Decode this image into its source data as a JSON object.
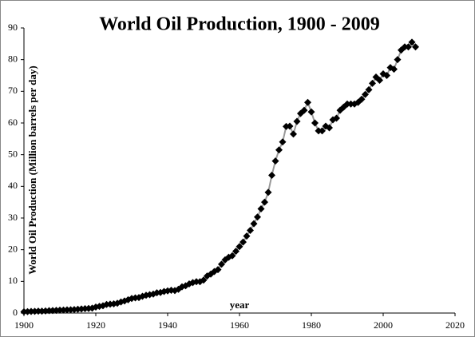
{
  "chart_data": {
    "type": "line",
    "title": "World Oil Production, 1900 - 2009",
    "x_label": "year",
    "y_label": "World Oil Production (Million barrels per day)",
    "x": [
      1900,
      1901,
      1902,
      1903,
      1904,
      1905,
      1906,
      1907,
      1908,
      1909,
      1910,
      1911,
      1912,
      1913,
      1914,
      1915,
      1916,
      1917,
      1918,
      1919,
      1920,
      1921,
      1922,
      1923,
      1924,
      1925,
      1926,
      1927,
      1928,
      1929,
      1930,
      1931,
      1932,
      1933,
      1934,
      1935,
      1936,
      1937,
      1938,
      1939,
      1940,
      1941,
      1942,
      1943,
      1944,
      1945,
      1946,
      1947,
      1948,
      1949,
      1950,
      1951,
      1952,
      1953,
      1954,
      1955,
      1956,
      1957,
      1958,
      1959,
      1960,
      1961,
      1962,
      1963,
      1964,
      1965,
      1966,
      1967,
      1968,
      1969,
      1970,
      1971,
      1972,
      1973,
      1974,
      1975,
      1976,
      1977,
      1978,
      1979,
      1980,
      1981,
      1982,
      1983,
      1984,
      1985,
      1986,
      1987,
      1988,
      1989,
      1990,
      1991,
      1992,
      1993,
      1994,
      1995,
      1996,
      1997,
      1998,
      1999,
      2000,
      2001,
      2002,
      2003,
      2004,
      2005,
      2006,
      2007,
      2008,
      2009
    ],
    "series": [
      {
        "name": "World Oil Production",
        "color": "#000000",
        "line_color": "#999999",
        "values": [
          0.4,
          0.45,
          0.5,
          0.55,
          0.6,
          0.6,
          0.65,
          0.75,
          0.8,
          0.85,
          0.9,
          0.95,
          1.0,
          1.05,
          1.1,
          1.2,
          1.3,
          1.4,
          1.45,
          1.55,
          1.9,
          2.1,
          2.3,
          2.7,
          2.8,
          2.9,
          3.1,
          3.5,
          3.8,
          4.2,
          4.6,
          4.8,
          4.9,
          5.3,
          5.6,
          5.8,
          6.0,
          6.4,
          6.5,
          6.8,
          7.0,
          7.2,
          7.1,
          7.5,
          8.3,
          8.6,
          9.2,
          9.6,
          9.9,
          9.9,
          10.4,
          11.7,
          12.3,
          13.1,
          13.7,
          15.4,
          16.8,
          17.6,
          18.1,
          19.5,
          21.0,
          22.4,
          24.3,
          26.1,
          28.2,
          30.3,
          32.9,
          35.0,
          38.1,
          43.5,
          48.0,
          51.5,
          54.0,
          58.9,
          59.0,
          56.5,
          60.5,
          63.0,
          64.0,
          66.5,
          63.5,
          60.0,
          57.5,
          57.5,
          59.0,
          58.5,
          61.0,
          61.5,
          64.0,
          65.0,
          66.0,
          66.0,
          66.0,
          66.5,
          67.5,
          69.0,
          70.5,
          72.5,
          74.5,
          73.5,
          75.5,
          75.0,
          77.5,
          77.0,
          80.0,
          83.0,
          84.0,
          84.0,
          85.5,
          84.0
        ]
      }
    ],
    "xlim": [
      1900,
      2020
    ],
    "xticks": [
      1900,
      1920,
      1940,
      1960,
      1980,
      2000,
      2020
    ],
    "ylim": [
      0,
      90
    ],
    "yticks": [
      0,
      10,
      20,
      30,
      40,
      50,
      60,
      70,
      80,
      90
    ]
  }
}
